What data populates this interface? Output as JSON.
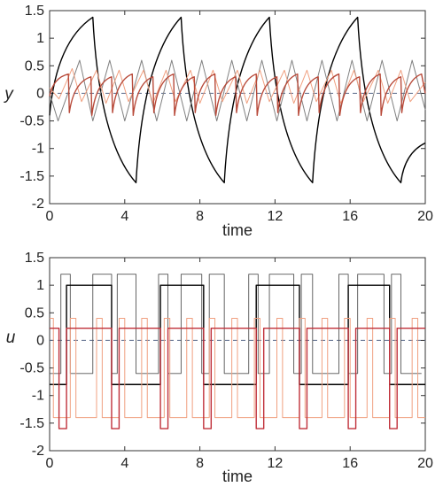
{
  "chart_data": [
    {
      "type": "line",
      "ylabel": "y",
      "xlabel": "time",
      "xlim": [
        0,
        20
      ],
      "ylim": [
        -2,
        1.5
      ],
      "xticks": [
        "0",
        "4",
        "8",
        "12",
        "16",
        "20"
      ],
      "yticks": [
        "-2",
        "-1.5",
        "-1",
        "-0.5",
        "0",
        "0.5",
        "1",
        "1.5"
      ],
      "reference_line": {
        "y": 0,
        "style": "dashed",
        "color": "#5a6a8a"
      },
      "series": [
        {
          "color": "#000000",
          "width": 1.4,
          "x": [
            0,
            2.3,
            4.6,
            7.0,
            9.3,
            11.7,
            14.0,
            16.4,
            18.7,
            20
          ],
          "y": [
            -0.4,
            1.38,
            -1.62,
            1.38,
            -1.62,
            1.38,
            -1.62,
            1.38,
            -1.62,
            -0.9
          ],
          "peak_shape": "concave",
          "trough_shape": "concave"
        },
        {
          "color": "#808080",
          "width": 1.0,
          "x": [
            0,
            0.45,
            1.6,
            2.3,
            3.2,
            4.0,
            4.9,
            5.7,
            6.5,
            7.3,
            8.1,
            8.9,
            9.7,
            10.5,
            11.3,
            12.1,
            12.9,
            13.7,
            14.5,
            15.3,
            16.1,
            16.9,
            17.7,
            18.5,
            19.3,
            20
          ],
          "y": [
            0.0,
            -0.5,
            0.6,
            -0.5,
            0.6,
            -0.5,
            0.6,
            -0.5,
            0.6,
            -0.5,
            0.6,
            -0.5,
            0.6,
            -0.5,
            0.6,
            -0.5,
            0.6,
            -0.5,
            0.6,
            -0.5,
            0.6,
            -0.5,
            0.6,
            -0.5,
            0.6,
            -0.3
          ]
        },
        {
          "color": "#f0a080",
          "width": 1.0,
          "x": [
            0,
            0.5,
            1.2,
            1.7,
            2.5,
            3.0,
            3.7,
            4.2,
            5.0,
            5.5,
            6.2,
            6.7,
            7.5,
            8.0,
            8.7,
            9.2,
            10.0,
            10.5,
            11.2,
            11.7,
            12.5,
            13.0,
            13.7,
            14.2,
            15.0,
            15.5,
            16.2,
            16.7,
            17.5,
            18.0,
            18.7,
            19.2,
            20
          ],
          "y": [
            0.1,
            -0.1,
            0.45,
            -0.15,
            0.42,
            -0.18,
            0.42,
            -0.15,
            0.42,
            -0.18,
            0.42,
            -0.15,
            0.42,
            -0.18,
            0.42,
            -0.15,
            0.42,
            -0.18,
            0.42,
            -0.15,
            0.42,
            -0.18,
            0.42,
            -0.15,
            0.42,
            -0.18,
            0.42,
            -0.15,
            0.42,
            -0.18,
            0.42,
            -0.15,
            0.2
          ]
        },
        {
          "color": "#b84a3a",
          "width": 1.4,
          "x": [
            0,
            1.0,
            1.05,
            2.2,
            2.25,
            3.3,
            3.35,
            4.4,
            4.45,
            5.5,
            5.55,
            6.6,
            6.65,
            7.7,
            7.75,
            8.8,
            8.85,
            9.9,
            9.95,
            11.0,
            11.05,
            12.1,
            12.15,
            13.2,
            13.25,
            14.3,
            14.35,
            15.4,
            15.45,
            16.5,
            16.55,
            17.6,
            17.65,
            18.7,
            18.75,
            19.8,
            20
          ],
          "y": [
            -0.05,
            0.35,
            -0.35,
            0.3,
            -0.4,
            0.3,
            -0.35,
            0.35,
            -0.4,
            0.3,
            -0.35,
            0.35,
            -0.4,
            0.3,
            -0.35,
            0.35,
            -0.4,
            0.3,
            -0.35,
            0.35,
            -0.4,
            0.3,
            -0.35,
            0.35,
            -0.4,
            0.3,
            -0.35,
            0.35,
            -0.4,
            0.3,
            -0.35,
            0.35,
            -0.4,
            0.3,
            -0.35,
            0.35,
            0.0
          ],
          "rise_shape": "saturating"
        }
      ]
    },
    {
      "type": "line",
      "ylabel": "u",
      "xlabel": "time",
      "xlim": [
        0,
        20
      ],
      "ylim": [
        -2,
        1.5
      ],
      "xticks": [
        "0",
        "4",
        "8",
        "12",
        "16",
        "20"
      ],
      "yticks": [
        "-2",
        "-1.5",
        "-1",
        "-0.5",
        "0",
        "0.5",
        "1",
        "1.5"
      ],
      "reference_line": {
        "y": 0,
        "style": "dashed",
        "color": "#5a6a8a"
      },
      "series": [
        {
          "color": "#555555",
          "width": 0.9,
          "step": true,
          "x": [
            0,
            0.6,
            0.6,
            1.1,
            1.1,
            2.3,
            2.3,
            3.3,
            3.3,
            3.6,
            3.6,
            4.6,
            4.6,
            5.8,
            5.8,
            6.3,
            6.3,
            7.0,
            7.0,
            8.1,
            8.1,
            8.5,
            8.5,
            9.3,
            9.3,
            10.6,
            10.6,
            11.1,
            11.1,
            11.7,
            11.7,
            13.0,
            13.0,
            13.4,
            13.4,
            14.0,
            14.0,
            15.4,
            15.4,
            15.9,
            15.9,
            16.4,
            16.4,
            17.8,
            17.8,
            18.2,
            18.2,
            18.7,
            18.7,
            19.8
          ],
          "y": [
            -0.6,
            -0.6,
            1.2,
            1.2,
            -0.6,
            -0.6,
            1.2,
            1.2,
            -0.6,
            -0.6,
            1.2,
            1.2,
            -0.6,
            -0.6,
            1.2,
            1.2,
            -0.6,
            -0.6,
            1.2,
            1.2,
            -0.6,
            -0.6,
            1.2,
            1.2,
            -0.6,
            -0.6,
            1.2,
            1.2,
            -0.6,
            -0.6,
            1.2,
            1.2,
            -0.6,
            -0.6,
            1.2,
            1.2,
            -0.6,
            -0.6,
            1.2,
            1.2,
            -0.6,
            -0.6,
            1.2,
            1.2,
            -0.6,
            -0.6,
            1.2,
            1.2,
            -0.6,
            -0.6
          ]
        },
        {
          "color": "#000000",
          "width": 1.4,
          "step": true,
          "x": [
            0,
            0.9,
            0.9,
            3.3,
            3.3,
            5.9,
            5.9,
            8.2,
            8.2,
            11.0,
            11.0,
            13.3,
            13.3,
            15.9,
            15.9,
            18.1,
            18.1,
            20
          ],
          "y": [
            -0.8,
            -0.8,
            1.0,
            1.0,
            -0.8,
            -0.8,
            1.0,
            1.0,
            -0.8,
            -0.8,
            1.0,
            1.0,
            -0.8,
            -0.8,
            1.0,
            1.0,
            -0.8,
            -0.8
          ]
        },
        {
          "color": "#f0a080",
          "width": 1.0,
          "step": true,
          "x": [
            0,
            0.2,
            0.2,
            1.1,
            1.1,
            1.4,
            1.4,
            2.5,
            2.5,
            2.8,
            2.8,
            3.7,
            3.7,
            4.0,
            4.0,
            4.9,
            4.9,
            5.2,
            5.2,
            6.1,
            6.1,
            6.4,
            6.4,
            7.3,
            7.3,
            7.6,
            7.6,
            8.5,
            8.5,
            8.8,
            8.8,
            9.7,
            9.7,
            10.0,
            10.0,
            10.9,
            10.9,
            11.2,
            11.2,
            12.1,
            12.1,
            12.4,
            12.4,
            13.3,
            13.3,
            13.6,
            13.6,
            14.5,
            14.5,
            14.8,
            14.8,
            15.7,
            15.7,
            16.0,
            16.0,
            16.9,
            16.9,
            17.2,
            17.2,
            18.1,
            18.1,
            18.4,
            18.4,
            19.3,
            19.3,
            19.6,
            19.6,
            20
          ],
          "y": [
            0.4,
            0.4,
            -1.4,
            -1.4,
            0.4,
            0.4,
            -1.4,
            -1.4,
            0.4,
            0.4,
            -1.4,
            -1.4,
            0.4,
            0.4,
            -1.4,
            -1.4,
            0.4,
            0.4,
            -1.4,
            -1.4,
            0.4,
            0.4,
            -1.4,
            -1.4,
            0.4,
            0.4,
            -1.4,
            -1.4,
            0.4,
            0.4,
            -1.4,
            -1.4,
            0.4,
            0.4,
            -1.4,
            -1.4,
            0.4,
            0.4,
            -1.4,
            -1.4,
            0.4,
            0.4,
            -1.4,
            -1.4,
            0.4,
            0.4,
            -1.4,
            -1.4,
            0.4,
            0.4,
            -1.4,
            -1.4,
            0.4,
            0.4,
            -1.4,
            -1.4,
            0.4,
            0.4,
            -1.4,
            -1.4,
            0.4,
            0.4,
            -1.4,
            -1.4,
            0.4,
            0.4,
            -1.4,
            -1.4
          ]
        },
        {
          "color": "#c0303a",
          "width": 1.4,
          "step": true,
          "x": [
            0,
            0.5,
            0.5,
            0.9,
            0.9,
            3.3,
            3.3,
            3.7,
            3.7,
            5.9,
            5.9,
            6.3,
            6.3,
            8.2,
            8.2,
            8.6,
            8.6,
            11.0,
            11.0,
            11.4,
            11.4,
            13.3,
            13.3,
            13.7,
            13.7,
            15.9,
            15.9,
            16.3,
            16.3,
            18.1,
            18.1,
            18.5,
            18.5,
            20
          ],
          "y": [
            0.22,
            0.22,
            -1.6,
            -1.6,
            0.22,
            0.22,
            -1.6,
            -1.6,
            0.22,
            0.22,
            -1.6,
            -1.6,
            0.22,
            0.22,
            -1.6,
            -1.6,
            0.22,
            0.22,
            -1.6,
            -1.6,
            0.22,
            0.22,
            -1.6,
            -1.6,
            0.22,
            0.22,
            -1.6,
            -1.6,
            0.22,
            0.22,
            -1.6,
            -1.6,
            0.22,
            0.22
          ]
        }
      ]
    }
  ]
}
